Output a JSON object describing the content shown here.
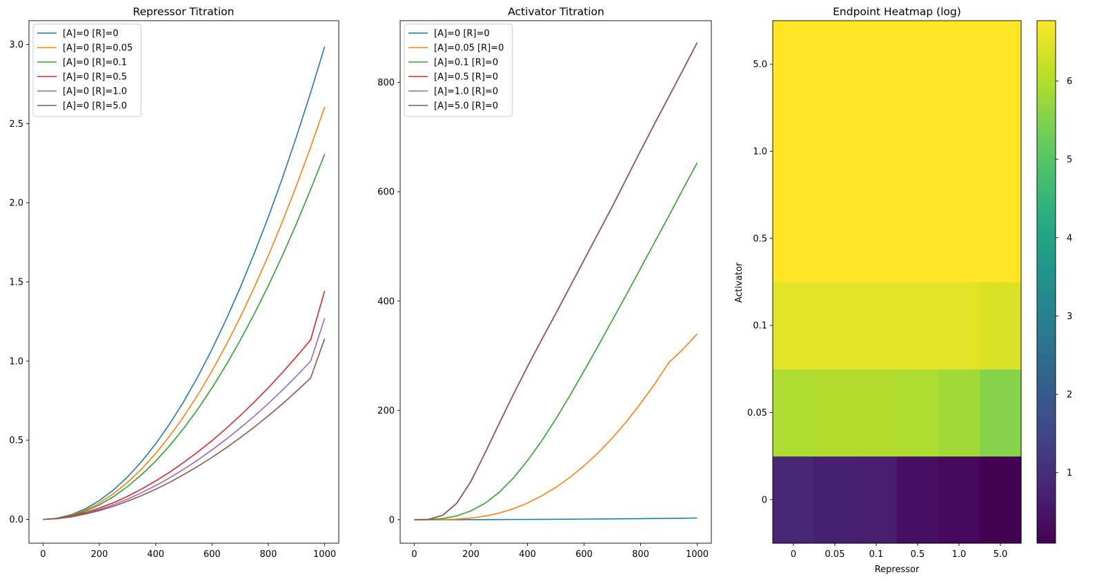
{
  "chart_data": [
    {
      "type": "line",
      "title": "Repressor Titration",
      "xlabel": "",
      "ylabel": "",
      "xlim": [
        -50,
        1050
      ],
      "ylim": [
        -0.15,
        3.15
      ],
      "xticks": [
        0,
        200,
        400,
        600,
        800,
        1000
      ],
      "yticks": [
        0.0,
        0.5,
        1.0,
        1.5,
        2.0,
        2.5,
        3.0
      ],
      "ytick_labels": [
        "0.0",
        "0.5",
        "1.0",
        "1.5",
        "2.0",
        "2.5",
        "3.0"
      ],
      "legend_position": "upper-left",
      "grid": false,
      "x": [
        0,
        50,
        100,
        150,
        200,
        250,
        300,
        350,
        400,
        450,
        500,
        550,
        600,
        650,
        700,
        750,
        800,
        850,
        900,
        950,
        1000
      ],
      "series": [
        {
          "name": "[A]=0 [R]=0",
          "color": "#1f77b4",
          "values": [
            0.0,
            0.0075,
            0.03,
            0.067,
            0.119,
            0.186,
            0.269,
            0.366,
            0.478,
            0.605,
            0.746,
            0.903,
            1.075,
            1.262,
            1.463,
            1.68,
            1.911,
            2.157,
            2.419,
            2.695,
            2.986
          ]
        },
        {
          "name": "[A]=0 [R]=0.05",
          "color": "#ff7f0e",
          "values": [
            0.0,
            0.0065,
            0.026,
            0.059,
            0.104,
            0.163,
            0.234,
            0.319,
            0.417,
            0.528,
            0.651,
            0.788,
            0.938,
            1.101,
            1.276,
            1.465,
            1.667,
            1.882,
            2.11,
            2.351,
            2.605
          ]
        },
        {
          "name": "[A]=0 [R]=0.1",
          "color": "#2ca02c",
          "values": [
            0.0,
            0.0058,
            0.023,
            0.052,
            0.092,
            0.144,
            0.208,
            0.283,
            0.369,
            0.467,
            0.577,
            0.698,
            0.831,
            0.975,
            1.131,
            1.298,
            1.477,
            1.667,
            1.869,
            2.083,
            2.308
          ]
        },
        {
          "name": "[A]=0 [R]=0.5",
          "color": "#d62728",
          "values": [
            0.0,
            0.006,
            0.021,
            0.043,
            0.072,
            0.106,
            0.146,
            0.192,
            0.243,
            0.299,
            0.361,
            0.427,
            0.498,
            0.574,
            0.655,
            0.741,
            0.832,
            0.928,
            1.029,
            1.134,
            1.444
          ]
        },
        {
          "name": "[A]=0 [R]=1.0",
          "color": "#9467bd",
          "values": [
            0.0,
            0.0053,
            0.018,
            0.038,
            0.063,
            0.093,
            0.128,
            0.169,
            0.214,
            0.263,
            0.318,
            0.376,
            0.439,
            0.506,
            0.577,
            0.652,
            0.733,
            0.817,
            0.906,
            0.999,
            1.27
          ]
        },
        {
          "name": "[A]=0 [R]=5.0",
          "color": "#8c564b",
          "values": [
            0.0,
            0.0047,
            0.016,
            0.034,
            0.056,
            0.083,
            0.115,
            0.151,
            0.191,
            0.235,
            0.284,
            0.336,
            0.392,
            0.452,
            0.516,
            0.583,
            0.655,
            0.73,
            0.81,
            0.893,
            1.142
          ]
        }
      ]
    },
    {
      "type": "line",
      "title": "Activator Titration",
      "xlabel": "",
      "ylabel": "",
      "xlim": [
        -50,
        1050
      ],
      "ylim": [
        -43,
        913
      ],
      "xticks": [
        0,
        200,
        400,
        600,
        800,
        1000
      ],
      "yticks": [
        0,
        200,
        400,
        600,
        800
      ],
      "ytick_labels": [
        "0",
        "200",
        "400",
        "600",
        "800"
      ],
      "legend_position": "upper-left",
      "grid": false,
      "x": [
        0,
        50,
        100,
        150,
        200,
        250,
        300,
        350,
        400,
        450,
        500,
        550,
        600,
        650,
        700,
        750,
        800,
        850,
        900,
        950,
        1000
      ],
      "series": [
        {
          "name": "[A]=0 [R]=0",
          "color": "#1f77b4",
          "values": [
            0.0,
            0.01,
            0.03,
            0.07,
            0.12,
            0.19,
            0.27,
            0.37,
            0.48,
            0.6,
            0.75,
            0.9,
            1.08,
            1.26,
            1.46,
            1.68,
            1.91,
            2.16,
            2.42,
            2.7,
            2.99
          ]
        },
        {
          "name": "[A]=0.05 [R]=0",
          "color": "#ff7f0e",
          "values": [
            0.0,
            0.0,
            0.2,
            1.0,
            3.0,
            6.5,
            12.0,
            20.0,
            30.5,
            43.5,
            59.0,
            77.5,
            98.5,
            122.5,
            149.5,
            179.5,
            212.5,
            248.5,
            287.5,
            312.0,
            340.0
          ]
        },
        {
          "name": "[A]=0.1 [R]=0",
          "color": "#2ca02c",
          "values": [
            0.0,
            0.2,
            2.0,
            7.0,
            16.0,
            30.0,
            50.0,
            76.0,
            108.0,
            144.0,
            184.0,
            227.0,
            272.0,
            318.0,
            365.0,
            412.0,
            460.0,
            508.0,
            556.0,
            605.0,
            653.0
          ]
        },
        {
          "name": "[A]=0.5 [R]=0",
          "color": "#d62728",
          "values": [
            0.0,
            0.5,
            8.0,
            30.0,
            70.0,
            122.0,
            176.0,
            229.0,
            280.0,
            329.0,
            377.0,
            426.0,
            475.0,
            524.0,
            573.0,
            624.0,
            675.0,
            725.0,
            774.0,
            823.0,
            873.0
          ]
        },
        {
          "name": "[A]=1.0 [R]=0",
          "color": "#9467bd",
          "values": [
            0.0,
            0.5,
            8.0,
            30.0,
            70.0,
            122.0,
            176.0,
            229.0,
            280.0,
            329.0,
            377.0,
            426.0,
            475.0,
            524.0,
            573.0,
            624.0,
            675.0,
            725.0,
            774.0,
            823.0,
            873.0
          ]
        },
        {
          "name": "[A]=5.0 [R]=0",
          "color": "#8c564b",
          "values": [
            0.0,
            0.5,
            8.0,
            30.0,
            70.0,
            122.0,
            176.0,
            229.0,
            280.0,
            329.0,
            377.0,
            426.0,
            475.0,
            524.0,
            573.0,
            624.0,
            675.0,
            725.0,
            774.0,
            823.0,
            873.0
          ]
        }
      ]
    },
    {
      "type": "heatmap",
      "title": "Endpoint Heatmap (log)",
      "xlabel": "Repressor",
      "ylabel": "Activator",
      "x_categories": [
        "0",
        "0.05",
        "0.1",
        "0.5",
        "1.0",
        "5.0"
      ],
      "y_categories": [
        "0",
        "0.05",
        "0.1",
        "0.5",
        "1.0",
        "5.0"
      ],
      "colormap": "viridis",
      "color_range": [
        0.1,
        6.77
      ],
      "colorbar_ticks": [
        1,
        2,
        3,
        4,
        5,
        6
      ],
      "values": [
        [
          0.83,
          0.7,
          0.65,
          0.35,
          0.25,
          0.11
        ],
        [
          5.95,
          6.0,
          6.0,
          5.95,
          5.85,
          5.55
        ],
        [
          6.5,
          6.5,
          6.5,
          6.5,
          6.5,
          6.4
        ],
        [
          6.77,
          6.77,
          6.77,
          6.77,
          6.77,
          6.77
        ],
        [
          6.77,
          6.77,
          6.77,
          6.77,
          6.77,
          6.77
        ],
        [
          6.77,
          6.77,
          6.77,
          6.77,
          6.77,
          6.77
        ]
      ]
    }
  ]
}
